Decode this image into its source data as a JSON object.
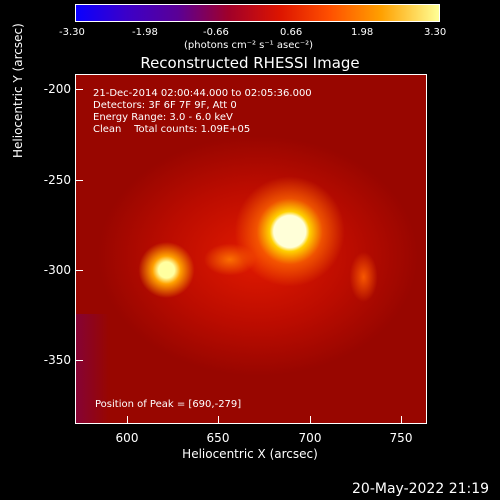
{
  "colorbar": {
    "ticks": [
      "-3.30",
      "-1.98",
      "-0.66",
      "0.66",
      "1.98",
      "3.30"
    ],
    "unit": "(photons cm⁻² s⁻¹ asec⁻²)"
  },
  "title": "Reconstructed RHESSI Image",
  "annotation": {
    "line1": "21-Dec-2014 02:00:44.000 to 02:05:36.000",
    "line2": "Detectors: 3F 6F 7F 9F, Att 0",
    "line3": "Energy Range: 3.0 - 6.0 keV",
    "line4": "Clean    Total counts: 1.09E+05"
  },
  "peak": "Position of Peak = [690,-279]",
  "axes": {
    "xlabel": "Heliocentric X (arcsec)",
    "ylabel": "Heliocentric Y (arcsec)",
    "xticks": [
      "600",
      "650",
      "700",
      "750"
    ],
    "yticks": [
      "-200",
      "-250",
      "-300",
      "-350"
    ]
  },
  "date": "20-May-2022 21:19"
}
